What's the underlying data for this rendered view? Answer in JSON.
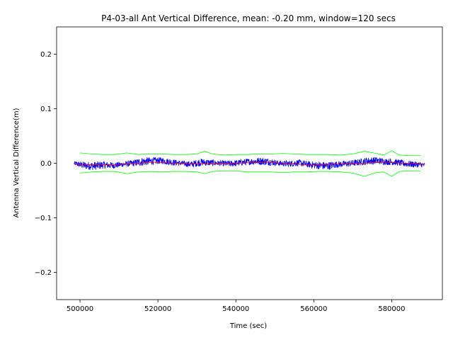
{
  "chart_data": {
    "type": "line",
    "title": "P4-03-all Ant Vertical Difference, mean: -0.20 mm, window=120 secs",
    "xlabel": "Time (sec)",
    "ylabel": "Antenna Vertical Difference(m)",
    "xlim": [
      494000,
      593000
    ],
    "ylim": [
      -0.25,
      0.25
    ],
    "grid": false,
    "x_ticks": [
      500000,
      520000,
      540000,
      560000,
      580000
    ],
    "x_tick_labels": [
      "500000",
      "520000",
      "540000",
      "560000",
      "580000"
    ],
    "y_ticks": [
      0.2,
      0.1,
      0.0,
      -0.1,
      -0.2
    ],
    "y_tick_labels": [
      "0.2",
      "0.1",
      "0.0",
      "−0.1",
      "−0.2"
    ],
    "colors": {
      "series": "#0000ff",
      "mean": "#ff0000",
      "envelope": "#00ff00"
    },
    "series": [
      {
        "role": "measured",
        "x": [
          498500,
          501000,
          503500,
          506000,
          508500,
          511000,
          513500,
          516000,
          518500,
          521000,
          523500,
          526000,
          528500,
          531000,
          533500,
          536000,
          538500,
          541000,
          543500,
          546000,
          548500,
          551000,
          553500,
          556000,
          558500,
          561000,
          563500,
          566000,
          568500,
          571000,
          573500,
          576000,
          578500,
          581000,
          583500,
          586000,
          588500
        ],
        "y": [
          0.0,
          -0.004,
          -0.005,
          -0.003,
          -0.004,
          -0.002,
          0.0,
          0.003,
          0.004,
          0.005,
          0.002,
          0.0,
          -0.002,
          0.002,
          0.001,
          0.0,
          -0.001,
          0.001,
          0.003,
          0.004,
          0.003,
          0.0,
          -0.001,
          0.001,
          -0.002,
          -0.004,
          -0.005,
          -0.002,
          -0.001,
          0.001,
          0.004,
          0.005,
          0.003,
          0.002,
          -0.001,
          -0.002,
          -0.003
        ],
        "noise": [
          0.004,
          0.007,
          0.008,
          0.007,
          0.006,
          0.005,
          0.006,
          0.008,
          0.007,
          0.006,
          0.006,
          0.005,
          0.006,
          0.007,
          0.006,
          0.005,
          0.006,
          0.006,
          0.006,
          0.007,
          0.007,
          0.005,
          0.006,
          0.006,
          0.006,
          0.007,
          0.008,
          0.006,
          0.006,
          0.006,
          0.007,
          0.007,
          0.006,
          0.006,
          0.006,
          0.006,
          0.004
        ]
      },
      {
        "role": "running-mean",
        "x": [
          498500,
          508500,
          518500,
          528500,
          538500,
          548500,
          558500,
          568500,
          578500,
          588500
        ],
        "y": [
          -0.002,
          -0.003,
          0.002,
          -0.001,
          0.0,
          0.002,
          -0.003,
          -0.001,
          0.002,
          -0.002
        ]
      },
      {
        "role": "upper-envelope",
        "x": [
          500000,
          503000,
          506000,
          509000,
          512000,
          515000,
          518000,
          521000,
          524000,
          527000,
          530000,
          532000,
          534000,
          537000,
          540000,
          543000,
          546000,
          549000,
          552000,
          555000,
          558000,
          561000,
          564000,
          567000,
          570000,
          573000,
          576000,
          578000,
          580000,
          582000,
          585000,
          587500
        ],
        "y": [
          0.019,
          0.017,
          0.016,
          0.016,
          0.019,
          0.016,
          0.017,
          0.017,
          0.016,
          0.016,
          0.017,
          0.022,
          0.017,
          0.015,
          0.016,
          0.016,
          0.017,
          0.017,
          0.018,
          0.017,
          0.016,
          0.016,
          0.016,
          0.015,
          0.017,
          0.022,
          0.018,
          0.015,
          0.023,
          0.015,
          0.014,
          0.014
        ]
      },
      {
        "role": "lower-envelope",
        "x": [
          500000,
          503000,
          506000,
          509000,
          512000,
          515000,
          518000,
          521000,
          524000,
          527000,
          530000,
          532000,
          534000,
          537000,
          540000,
          543000,
          546000,
          549000,
          552000,
          555000,
          558000,
          561000,
          564000,
          567000,
          570000,
          573000,
          576000,
          578000,
          580000,
          582000,
          585000,
          587500
        ],
        "y": [
          -0.018,
          -0.016,
          -0.015,
          -0.015,
          -0.019,
          -0.016,
          -0.015,
          -0.016,
          -0.015,
          -0.015,
          -0.016,
          -0.019,
          -0.015,
          -0.014,
          -0.014,
          -0.016,
          -0.016,
          -0.016,
          -0.017,
          -0.016,
          -0.016,
          -0.015,
          -0.015,
          -0.016,
          -0.018,
          -0.024,
          -0.017,
          -0.016,
          -0.024,
          -0.015,
          -0.014,
          -0.014
        ]
      }
    ]
  }
}
